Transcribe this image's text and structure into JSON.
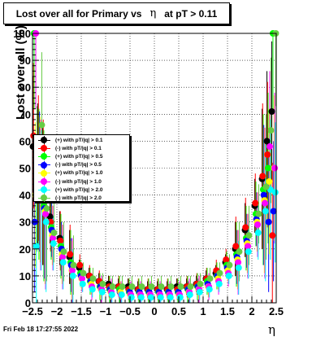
{
  "title": {
    "prefix": "Lost over all for Primary vs",
    "eta": "η",
    "suffix": "at pT > 0.11"
  },
  "timestamp": "Fri Feb 18 17:27:55 2022",
  "chart_data": {
    "type": "scatter",
    "xlabel": "η",
    "ylabel": "Lost over all (%)",
    "xlim": [
      -2.5,
      2.5
    ],
    "ylim": [
      0,
      100
    ],
    "grid": true,
    "legend_position": "left",
    "x_ticks": [
      "−2.5",
      "−2",
      "−1.5",
      "−1",
      "−0.5",
      "0",
      "0.5",
      "1",
      "1.5",
      "2",
      "2.5"
    ],
    "y_ticks": [
      "0",
      "10",
      "20",
      "30",
      "40",
      "50",
      "60",
      "70",
      "80",
      "90",
      "100"
    ],
    "series": [
      {
        "name": "(+) with pT/|q| > 0.1",
        "color": "#000000",
        "x": [
          -2.45,
          -2.35,
          -2.25,
          -2.1,
          -1.9,
          -1.7,
          -1.5,
          -1.3,
          -1.1,
          -0.9,
          -0.7,
          -0.5,
          -0.3,
          -0.1,
          0.1,
          0.3,
          0.5,
          0.7,
          0.9,
          1.1,
          1.3,
          1.5,
          1.7,
          1.9,
          2.1,
          2.25,
          2.35,
          2.45
        ],
        "y": [
          58,
          48,
          40,
          32,
          24,
          17,
          13,
          10,
          8,
          7,
          6,
          6,
          5,
          5,
          5,
          5,
          6,
          6,
          7,
          9,
          11,
          15,
          20,
          27,
          36,
          46,
          60,
          71
        ]
      },
      {
        "name": "(-) with pT/|q| > 0.1",
        "color": "#ff0000",
        "x": [
          -2.45,
          -2.35,
          -2.25,
          -2.1,
          -1.9,
          -1.7,
          -1.5,
          -1.3,
          -1.1,
          -0.9,
          -0.7,
          -0.5,
          -0.3,
          -0.1,
          0.1,
          0.3,
          0.5,
          0.7,
          0.9,
          1.1,
          1.3,
          1.5,
          1.7,
          1.9,
          2.1,
          2.25,
          2.35,
          2.45
        ],
        "y": [
          62,
          50,
          41,
          30,
          23,
          18,
          14,
          10,
          8,
          6,
          6,
          5,
          5,
          5,
          5,
          5,
          5,
          6,
          7,
          9,
          12,
          16,
          21,
          28,
          37,
          47,
          55,
          25
        ]
      },
      {
        "name": "(+) with pT/|q| > 0.5",
        "color": "#00ff00",
        "x": [
          -2.45,
          -2.35,
          -2.25,
          -2.1,
          -1.9,
          -1.7,
          -1.5,
          -1.3,
          -1.1,
          -0.9,
          -0.7,
          -0.5,
          -0.3,
          -0.1,
          0.1,
          0.3,
          0.5,
          0.7,
          0.9,
          1.1,
          1.3,
          1.5,
          1.7,
          1.9,
          2.1,
          2.25,
          2.35,
          2.45
        ],
        "y": [
          100,
          44,
          36,
          28,
          21,
          15,
          11,
          8,
          6,
          5,
          5,
          4,
          4,
          4,
          4,
          4,
          4,
          5,
          6,
          8,
          10,
          14,
          18,
          24,
          33,
          42,
          50,
          100
        ]
      },
      {
        "name": "(-) with pT/|q| > 0.5",
        "color": "#0000ff",
        "x": [
          -2.45,
          -2.35,
          -2.25,
          -2.1,
          -1.9,
          -1.7,
          -1.5,
          -1.3,
          -1.1,
          -0.9,
          -0.7,
          -0.5,
          -0.3,
          -0.1,
          0.1,
          0.3,
          0.5,
          0.7,
          0.9,
          1.1,
          1.3,
          1.5,
          1.7,
          1.9,
          2.1,
          2.25,
          2.35,
          2.45
        ],
        "y": [
          30,
          45,
          35,
          27,
          20,
          14,
          10,
          8,
          6,
          5,
          4,
          4,
          4,
          4,
          4,
          4,
          4,
          5,
          6,
          7,
          10,
          13,
          17,
          23,
          31,
          40,
          30,
          34
        ]
      },
      {
        "name": "(+) with pT/|q| > 1.0",
        "color": "#ffff00",
        "x": [
          -2.45,
          -2.35,
          -2.25,
          -2.1,
          -1.9,
          -1.7,
          -1.5,
          -1.3,
          -1.1,
          -0.9,
          -0.7,
          -0.5,
          -0.3,
          -0.1,
          0.1,
          0.3,
          0.5,
          0.7,
          0.9,
          1.1,
          1.3,
          1.5,
          1.7,
          1.9,
          2.1,
          2.25,
          2.35,
          2.45
        ],
        "y": [
          40,
          42,
          34,
          25,
          18,
          12,
          9,
          7,
          5,
          4,
          4,
          3,
          3,
          3,
          3,
          3,
          3,
          4,
          5,
          6,
          9,
          12,
          16,
          22,
          30,
          38,
          45,
          50
        ]
      },
      {
        "name": "(-) with pT/|q| > 1.0",
        "color": "#ff00ff",
        "x": [
          -2.45,
          -2.35,
          -2.25,
          -2.1,
          -1.9,
          -1.7,
          -1.5,
          -1.3,
          -1.1,
          -0.9,
          -0.7,
          -0.5,
          -0.3,
          -0.1,
          0.1,
          0.3,
          0.5,
          0.7,
          0.9,
          1.1,
          1.3,
          1.5,
          1.7,
          1.9,
          2.1,
          2.25,
          2.35,
          2.45
        ],
        "y": [
          100,
          40,
          33,
          24,
          17,
          12,
          9,
          6,
          5,
          4,
          3,
          3,
          3,
          3,
          3,
          3,
          3,
          4,
          5,
          6,
          8,
          11,
          15,
          21,
          29,
          37,
          58,
          50
        ]
      },
      {
        "name": "(+) with pT/|q| > 2.0",
        "color": "#00ffff",
        "x": [
          -2.45,
          -2.35,
          -2.25,
          -2.1,
          -1.9,
          -1.7,
          -1.5,
          -1.3,
          -1.1,
          -0.9,
          -0.7,
          -0.5,
          -0.3,
          -0.1,
          0.1,
          0.3,
          0.5,
          0.7,
          0.9,
          1.1,
          1.3,
          1.5,
          1.7,
          1.9,
          2.1,
          2.25,
          2.35,
          2.45
        ],
        "y": [
          21,
          38,
          30,
          22,
          15,
          10,
          7,
          5,
          4,
          3,
          3,
          2,
          2,
          2,
          2,
          2,
          2,
          3,
          4,
          5,
          7,
          10,
          13,
          19,
          26,
          34,
          42,
          41
        ]
      },
      {
        "name": "(-) with pT/|q| > 2.0",
        "color": "#66cc44",
        "x": [
          -2.45,
          -2.35,
          -2.25,
          -2.1,
          -1.9,
          -1.7,
          -1.5,
          -1.3,
          -1.1,
          -0.9,
          -0.7,
          -0.5,
          -0.3,
          -0.1,
          0.1,
          0.3,
          0.5,
          0.7,
          0.9,
          1.1,
          1.3,
          1.5,
          1.7,
          1.9,
          2.1,
          2.25,
          2.35,
          2.45
        ],
        "y": [
          46,
          66,
          35,
          26,
          19,
          14,
          11,
          9,
          7,
          6,
          6,
          6,
          6,
          6,
          6,
          6,
          6,
          6,
          7,
          9,
          11,
          14,
          19,
          25,
          33,
          43,
          64,
          100
        ]
      }
    ]
  }
}
